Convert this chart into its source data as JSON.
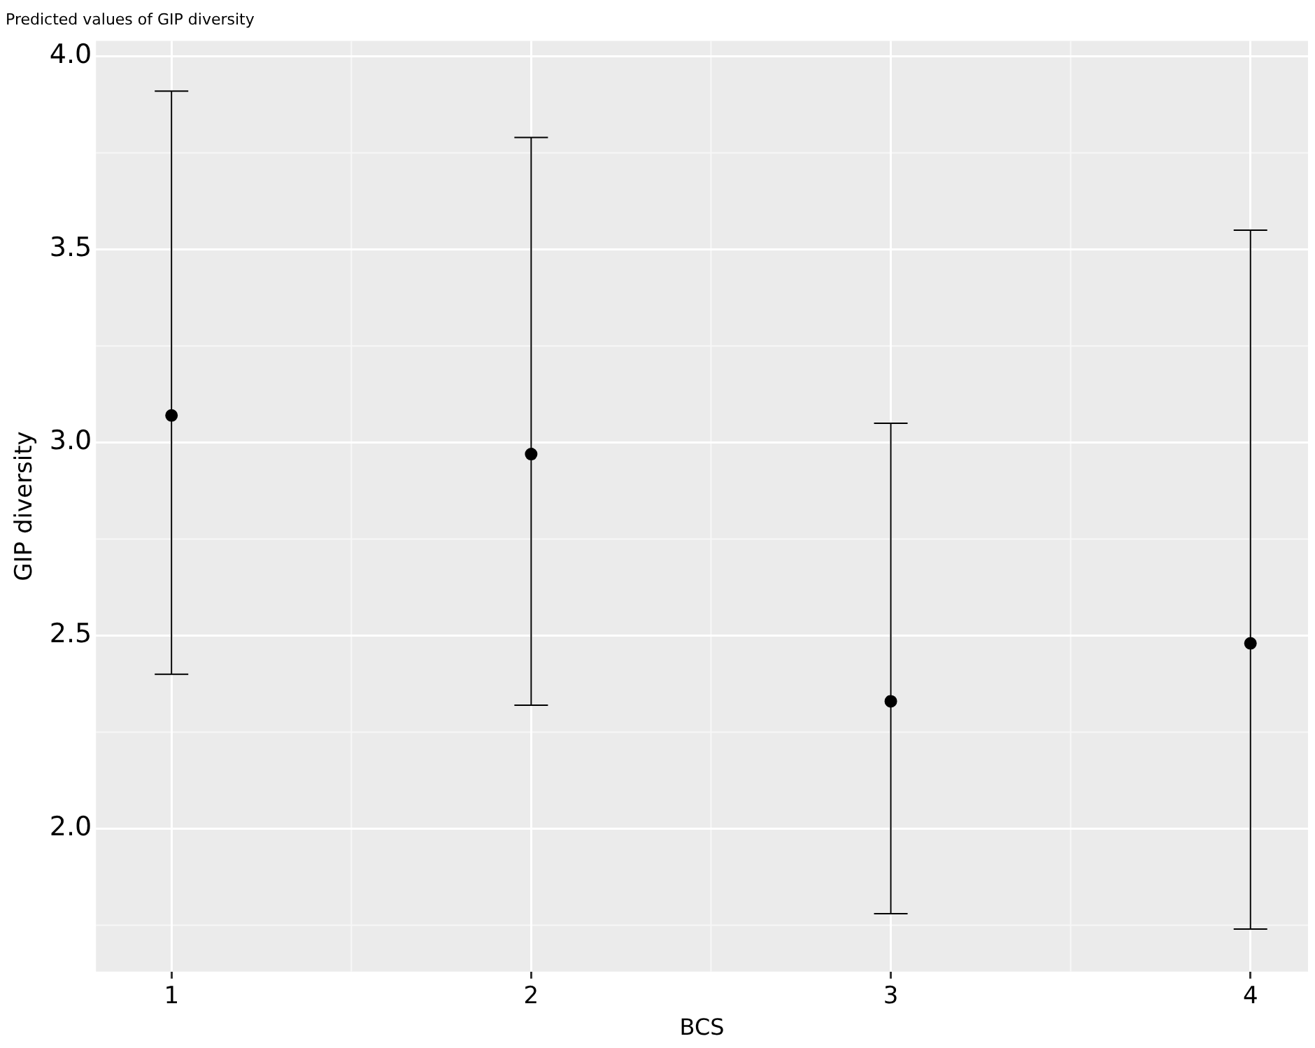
{
  "chart_data": {
    "type": "scatter",
    "title": "Predicted values of GIP diversity",
    "xlabel": "BCS",
    "ylabel": "GIP diversity",
    "categories": [
      "1",
      "2",
      "3",
      "4"
    ],
    "series": [
      {
        "color": "#000000",
        "values": [
          3.07,
          2.97,
          2.33,
          2.48
        ],
        "errors": [
          [
            2.4,
            3.91
          ],
          [
            2.32,
            3.79
          ],
          [
            1.78,
            3.05
          ],
          [
            1.74,
            3.55
          ]
        ]
      }
    ],
    "ylim": [
      1.63,
      4.04
    ],
    "yticks": [
      {
        "value": 2,
        "label": "2.0"
      },
      2.5,
      {
        "value": 3,
        "label": "3.0"
      },
      3.5,
      {
        "value": 4,
        "label": "4.0"
      }
    ],
    "grid": true,
    "legend": false,
    "marker": "circle"
  }
}
